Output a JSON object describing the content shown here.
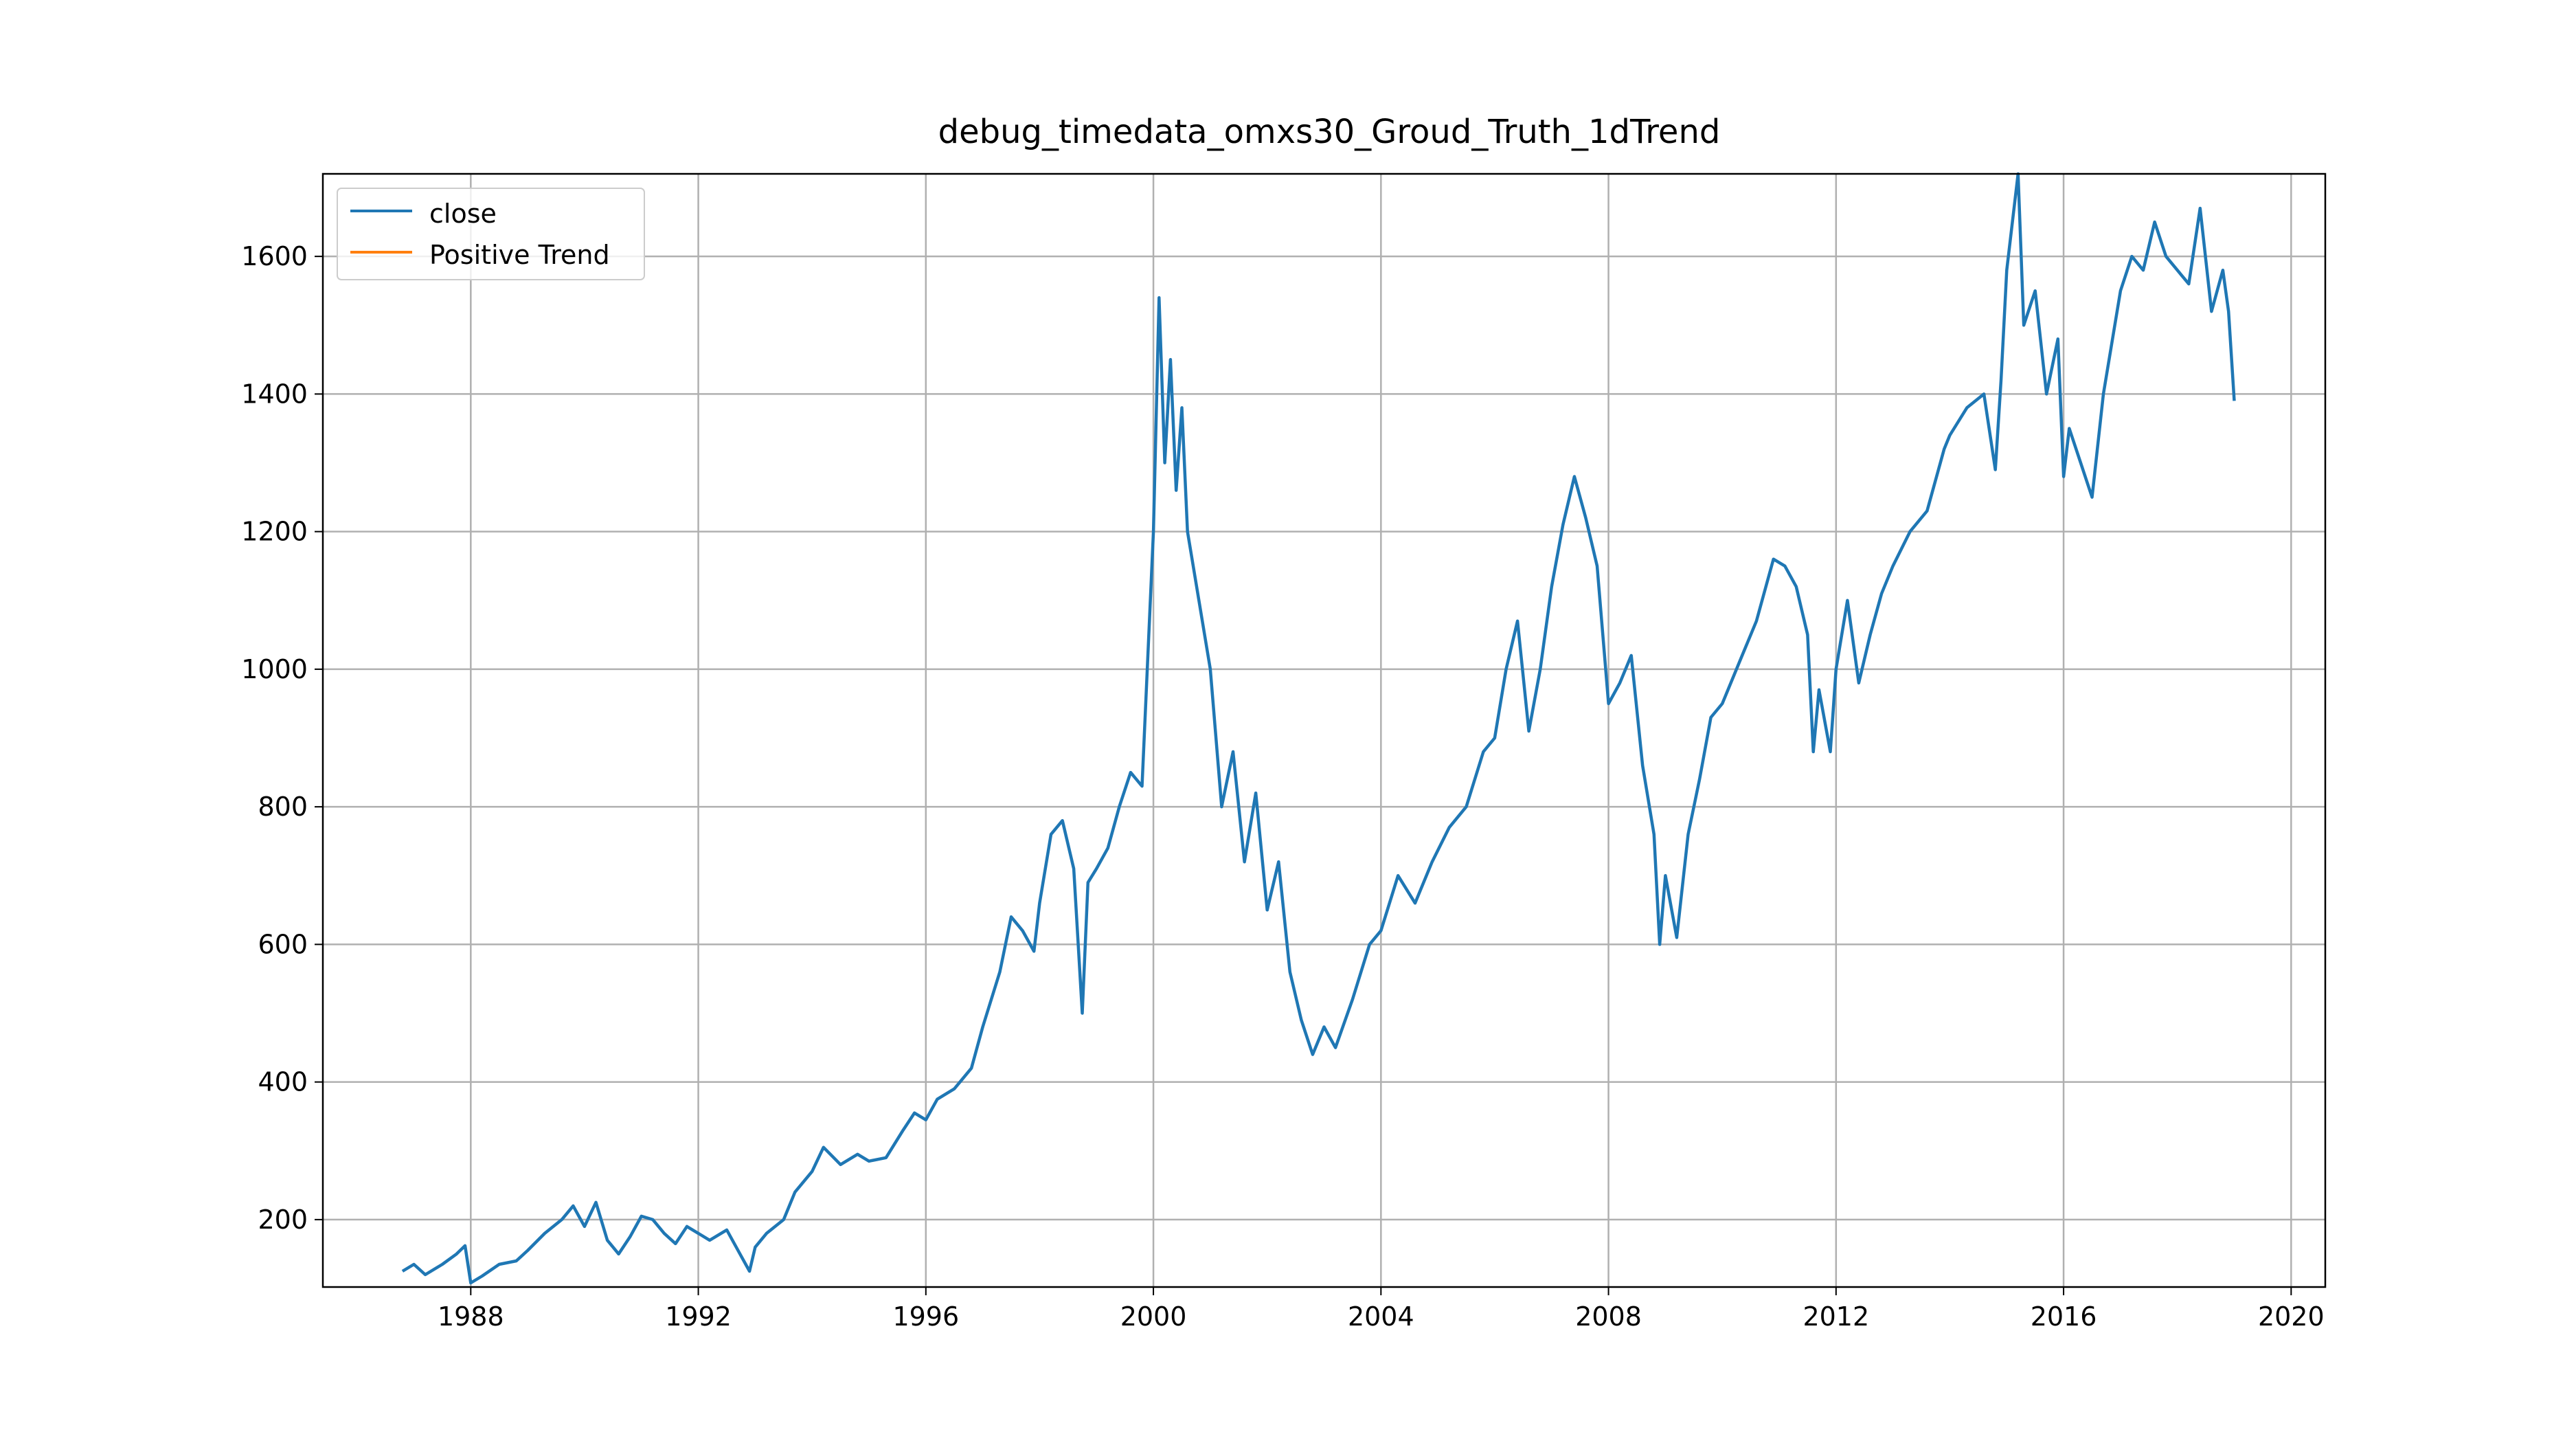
{
  "chart_data": {
    "type": "line",
    "title": "debug_timedata_omxs30_Groud_Truth_1dTrend",
    "xlabel": "",
    "ylabel": "",
    "xlim": [
      1985.4,
      2020.6
    ],
    "ylim": [
      102,
      1720
    ],
    "x_ticks": [
      1988,
      1992,
      1996,
      2000,
      2004,
      2008,
      2012,
      2016,
      2020
    ],
    "y_ticks": [
      200,
      400,
      600,
      800,
      1000,
      1200,
      1400,
      1600
    ],
    "grid": true,
    "legend": {
      "position": "upper-left",
      "entries": [
        "close",
        "Positive Trend"
      ]
    },
    "series": [
      {
        "name": "close",
        "color": "#1f77b4",
        "x": [
          1986.8,
          1987.0,
          1987.2,
          1987.5,
          1987.75,
          1987.9,
          1988.0,
          1988.2,
          1988.5,
          1988.8,
          1989.0,
          1989.3,
          1989.6,
          1989.8,
          1990.0,
          1990.2,
          1990.4,
          1990.6,
          1990.8,
          1991.0,
          1991.2,
          1991.4,
          1991.6,
          1991.8,
          1992.0,
          1992.2,
          1992.5,
          1992.7,
          1992.9,
          1993.0,
          1993.2,
          1993.5,
          1993.7,
          1994.0,
          1994.2,
          1994.5,
          1994.8,
          1995.0,
          1995.3,
          1995.6,
          1995.8,
          1996.0,
          1996.2,
          1996.5,
          1996.8,
          1997.0,
          1997.3,
          1997.5,
          1997.7,
          1997.9,
          1998.0,
          1998.2,
          1998.4,
          1998.6,
          1998.75,
          1998.85,
          1999.0,
          1999.2,
          1999.4,
          1999.6,
          1999.8,
          2000.0,
          2000.1,
          2000.2,
          2000.3,
          2000.4,
          2000.5,
          2000.6,
          2000.8,
          2001.0,
          2001.2,
          2001.4,
          2001.6,
          2001.8,
          2002.0,
          2002.2,
          2002.4,
          2002.6,
          2002.8,
          2003.0,
          2003.2,
          2003.5,
          2003.8,
          2004.0,
          2004.3,
          2004.6,
          2004.9,
          2005.2,
          2005.5,
          2005.8,
          2006.0,
          2006.2,
          2006.4,
          2006.6,
          2006.8,
          2007.0,
          2007.2,
          2007.4,
          2007.6,
          2007.8,
          2008.0,
          2008.2,
          2008.4,
          2008.6,
          2008.8,
          2008.9,
          2009.0,
          2009.2,
          2009.4,
          2009.6,
          2009.8,
          2010.0,
          2010.3,
          2010.6,
          2010.9,
          2011.1,
          2011.3,
          2011.5,
          2011.6,
          2011.7,
          2011.9,
          2012.0,
          2012.2,
          2012.4,
          2012.6,
          2012.8,
          2013.0,
          2013.3,
          2013.6,
          2013.9,
          2014.0,
          2014.3,
          2014.6,
          2014.8,
          2014.9,
          2015.0,
          2015.2,
          2015.3,
          2015.5,
          2015.7,
          2015.9,
          2016.0,
          2016.1,
          2016.3,
          2016.5,
          2016.7,
          2017.0,
          2017.2,
          2017.4,
          2017.6,
          2017.8,
          2018.0,
          2018.2,
          2018.4,
          2018.6,
          2018.8,
          2018.9,
          2019.0
        ],
        "values": [
          125,
          135,
          120,
          135,
          150,
          162,
          108,
          118,
          135,
          140,
          155,
          180,
          200,
          220,
          190,
          225,
          170,
          150,
          175,
          205,
          200,
          180,
          165,
          190,
          180,
          170,
          185,
          155,
          125,
          160,
          180,
          200,
          240,
          270,
          305,
          280,
          295,
          285,
          290,
          330,
          355,
          345,
          375,
          390,
          420,
          480,
          560,
          640,
          620,
          590,
          660,
          760,
          780,
          710,
          500,
          690,
          710,
          740,
          800,
          850,
          830,
          1200,
          1540,
          1300,
          1450,
          1260,
          1380,
          1200,
          1100,
          1000,
          800,
          880,
          720,
          820,
          650,
          720,
          560,
          490,
          440,
          480,
          450,
          520,
          600,
          620,
          700,
          660,
          720,
          770,
          800,
          880,
          900,
          1000,
          1070,
          910,
          1000,
          1120,
          1210,
          1280,
          1220,
          1150,
          950,
          980,
          1020,
          860,
          760,
          600,
          700,
          610,
          760,
          840,
          930,
          950,
          1010,
          1070,
          1160,
          1150,
          1120,
          1050,
          880,
          970,
          880,
          1000,
          1100,
          980,
          1050,
          1110,
          1150,
          1200,
          1230,
          1320,
          1340,
          1380,
          1400,
          1290,
          1420,
          1580,
          1720,
          1500,
          1550,
          1400,
          1480,
          1280,
          1350,
          1300,
          1250,
          1400,
          1550,
          1600,
          1580,
          1650,
          1600,
          1580,
          1560,
          1670,
          1520,
          1580,
          1520,
          1390
        ]
      },
      {
        "name": "Positive Trend",
        "color": "#ff7f0e",
        "x": [],
        "values": []
      }
    ]
  }
}
